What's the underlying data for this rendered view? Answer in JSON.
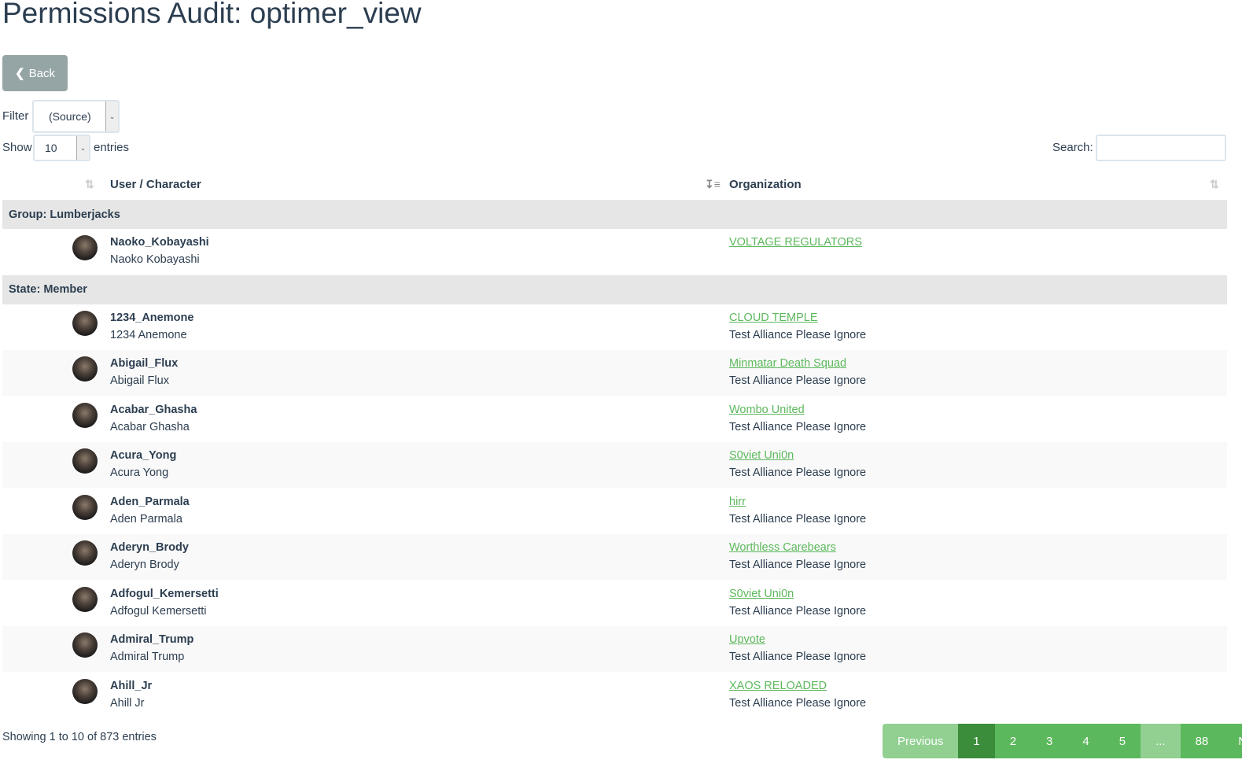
{
  "title": "Permissions Audit: optimer_view",
  "back_label": "Back",
  "filter": {
    "label": "Filter",
    "value": "(Source)"
  },
  "show": {
    "label": "Show",
    "value": "10",
    "suffix": "entries"
  },
  "search": {
    "label": "Search:",
    "value": ""
  },
  "columns": [
    "User / Character",
    "Organization"
  ],
  "groups": [
    {
      "header": "Group: Lumberjacks",
      "rows": [
        {
          "user": "Naoko_Kobayashi",
          "character": "Naoko Kobayashi",
          "org": "VOLTAGE REGULATORS",
          "alliance": ""
        }
      ]
    },
    {
      "header": "State: Member",
      "rows": [
        {
          "user": "1234_Anemone",
          "character": "1234 Anemone",
          "org": "CLOUD TEMPLE",
          "alliance": "Test Alliance Please Ignore"
        },
        {
          "user": "Abigail_Flux",
          "character": "Abigail Flux",
          "org": "Minmatar Death Squad",
          "alliance": "Test Alliance Please Ignore"
        },
        {
          "user": "Acabar_Ghasha",
          "character": "Acabar Ghasha",
          "org": "Wombo United",
          "alliance": "Test Alliance Please Ignore"
        },
        {
          "user": "Acura_Yong",
          "character": "Acura Yong",
          "org": "S0viet Uni0n",
          "alliance": "Test Alliance Please Ignore"
        },
        {
          "user": "Aden_Parmala",
          "character": "Aden Parmala",
          "org": "hirr",
          "alliance": "Test Alliance Please Ignore"
        },
        {
          "user": "Aderyn_Brody",
          "character": "Aderyn Brody",
          "org": "Worthless Carebears",
          "alliance": "Test Alliance Please Ignore"
        },
        {
          "user": "Adfogul_Kemersetti",
          "character": "Adfogul Kemersetti",
          "org": "S0viet Uni0n",
          "alliance": "Test Alliance Please Ignore"
        },
        {
          "user": "Admiral_Trump",
          "character": "Admiral Trump",
          "org": "Upvote",
          "alliance": "Test Alliance Please Ignore"
        },
        {
          "user": "Ahill_Jr",
          "character": "Ahill Jr",
          "org": "XAOS RELOADED",
          "alliance": "Test Alliance Please Ignore"
        }
      ]
    }
  ],
  "info": "Showing 1 to 10 of 873 entries",
  "pagination": [
    "Previous",
    "1",
    "2",
    "3",
    "4",
    "5",
    "...",
    "88",
    "Next"
  ],
  "colors": {
    "accent": "#5cb85c",
    "active_page": "#3b8c3b",
    "back_button": "#95a5a6"
  }
}
